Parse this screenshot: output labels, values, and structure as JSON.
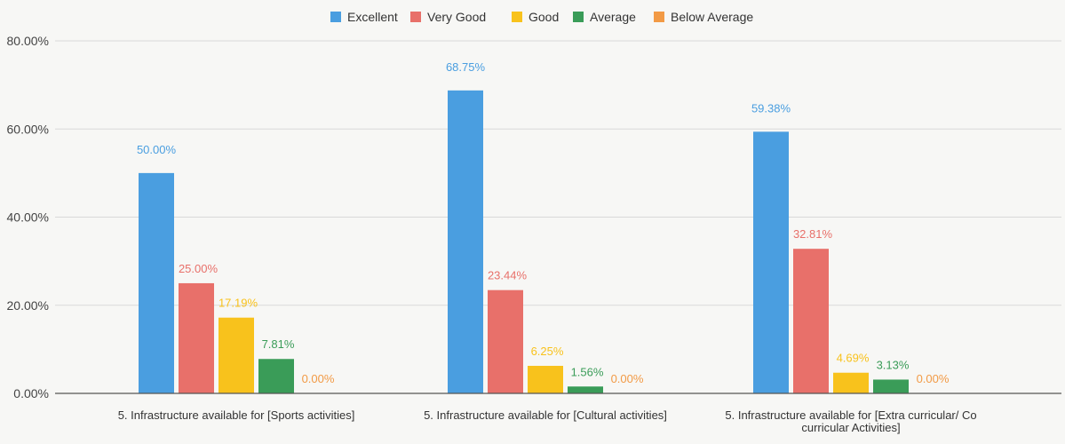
{
  "chart_data": {
    "type": "bar",
    "categories": [
      [
        "5. Infrastructure available for  [Sports activities]"
      ],
      [
        "5. Infrastructure available for  [Cultural activities]"
      ],
      [
        "5. Infrastructure available for  [Extra curricular/ Co",
        "curricular Activities]"
      ]
    ],
    "series": [
      {
        "name": "Excellent",
        "color": "#4a9ee0",
        "values": [
          50.0,
          68.75,
          59.38
        ],
        "labels": [
          "50.00%",
          "68.75%",
          "59.38%"
        ]
      },
      {
        "name": "Very Good",
        "color": "#e8706a",
        "values": [
          25.0,
          23.44,
          32.81
        ],
        "labels": [
          "25.00%",
          "23.44%",
          "32.81%"
        ]
      },
      {
        "name": "Good",
        "color": "#f8c21c",
        "values": [
          17.19,
          6.25,
          4.69
        ],
        "labels": [
          "17.19%",
          "6.25%",
          "4.69%"
        ]
      },
      {
        "name": "Average",
        "color": "#3a9c58",
        "values": [
          7.81,
          1.56,
          3.13
        ],
        "labels": [
          "7.81%",
          "1.56%",
          "3.13%"
        ]
      },
      {
        "name": "Below Average",
        "color": "#f29a45",
        "values": [
          0.0,
          0.0,
          0.0
        ],
        "labels": [
          "0.00%",
          "0.00%",
          "0.00%"
        ]
      }
    ],
    "ylim": [
      0,
      80
    ],
    "yticks": [
      0,
      20,
      40,
      60,
      80
    ],
    "ytick_labels": [
      "0.00%",
      "20.00%",
      "40.00%",
      "60.00%",
      "80.00%"
    ],
    "grid": true,
    "legend_position": "top-center",
    "title": "",
    "xlabel": "",
    "ylabel": ""
  }
}
